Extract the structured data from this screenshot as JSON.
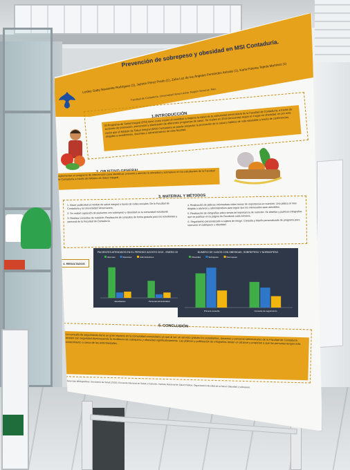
{
  "poster": {
    "title": "Prevención de sobrepeso y obesidad en MSI Contaduría.",
    "authors": "Lesley Gaby Navarrete Rodríguez (1), Jazmín Pérez Prado (1), Zulia Luz de los Ángeles Fernández Arévalo (1), Karla Paloma Tejeda Martínez (1)",
    "affiliations": "Facultad de Contaduría, Universidad Veracruzana. Región Veracruz, Mex.",
    "intro": {
      "heading": "1.INTRODUCCIÓN",
      "text": "El Programa de Salud Integral (PSI) tiene como misión el contribuir a mejorar la salud de la comunidad universitaria de la Facultad de Contaduría, a través de acciones de promoción, prevención y planeación de diferentes programas de salud. Se realizó en 2018 (encuesta) según el 4 lugar en obesidad, es por esta razón que el Módulo de Salud Integral (MSI) Contaduría se puede proyectar la promoción de la salud y hábitos de vida saludable a través de conferencias, dirigidas a académicos, docentes y administrativos de esta facultad."
    },
    "objective": {
      "heading": "2. OBJETIVO GENERAL",
      "text": "Implementar un programa de intervención para identificar, prevenir y atender la obesidad y sobrepeso en los estudiantes de la Facultad de Contaduría a través del Módulo de Salud Integral."
    },
    "methods": {
      "heading": "3. MATERIAL Y MÉTODOS",
      "left": [
        "1. Hacer publicidad al módulo de salud integral a través de redes sociales: De la Facultad de Contaduría y la Universidad Veracruzana.",
        "2. Se realizó captación de pacientes con sobrepeso y obesidad en la comunidad estudiantil.",
        "3. Realizar consultas de nutrición: Realización de consultas de forma gratuita para los estudiantes y personal de la Facultad de Contaduría."
      ],
      "right": [
        "4. Realización de pláticas informativas sobre temas de importancia en nutrición: Una plática al mes dirigida a alumnos y administrativos para lograr que los interesados sean atendidos.",
        "5. Realización de infografías sobre temas de importancia de nutrición: Se diseñan y publican infografías que se publican en la página de Facebook cada semana.",
        "6. Seguimiento personalizado a sujetos de riesgo: Consulta y diseño personalizado de programa para intervenir el sobrepeso u obesidad."
      ]
    },
    "results_label": "4. RESULTADOS",
    "conclusion": {
      "heading": "5. CONCLUSIÓN",
      "text": "La consulta de seguimiento tiene un gran impacto en la comunidad universitaria ya que al ser un servicio gratuito los estudiantes, docentes y personal administrativo de la Facultad de Contaduría asisten con seguridad disminuyendo la incidencia de sobrepeso y obesidad significativamente. Las pláticas y publicación de infografías tienen un alcance y propician a que las personas tengan más conocimiento a cerca de las enfermedades."
    },
    "references": "Referencias bibliográficas: Secretaría de Salud (2018). Encuesta Nacional de Salud y Nutrición. Instituto Nacional de Salud Pública. Organización Mundial de la Salud. Obesidad y sobrepeso."
  },
  "chart_data": [
    {
      "type": "bar",
      "title": "PACIENTES ATENDIDOS EN EL PERIODO AGOSTO 2019 - ENERO 2020",
      "categories": [
        "Estudiantes",
        "Personal administrativo"
      ],
      "series": [
        {
          "name": "Alumnos",
          "values": [
            34,
            19
          ],
          "color": "#3fae49"
        },
        {
          "name": "Docentes",
          "values": [
            6,
            4
          ],
          "color": "#2f78c9"
        },
        {
          "name": "Administrativos",
          "values": [
            7,
            6
          ],
          "color": "#f2b40f"
        }
      ],
      "ylim": [
        0,
        40
      ]
    },
    {
      "type": "bar",
      "title": "NUMERO DE CASOS CON OBESIDAD, SOBREPESO Y NORMOPESO",
      "categories": [
        "Primera consulta",
        "Consulta de seguimiento"
      ],
      "series": [
        {
          "name": "Obesidad",
          "values": [
            24,
            18
          ],
          "color": "#3fae49"
        },
        {
          "name": "Sobrepeso",
          "values": [
            28,
            14
          ],
          "color": "#2f78c9"
        },
        {
          "name": "Normopeso",
          "values": [
            12,
            8
          ],
          "color": "#f2b40f"
        }
      ],
      "ylim": [
        0,
        32
      ]
    }
  ]
}
